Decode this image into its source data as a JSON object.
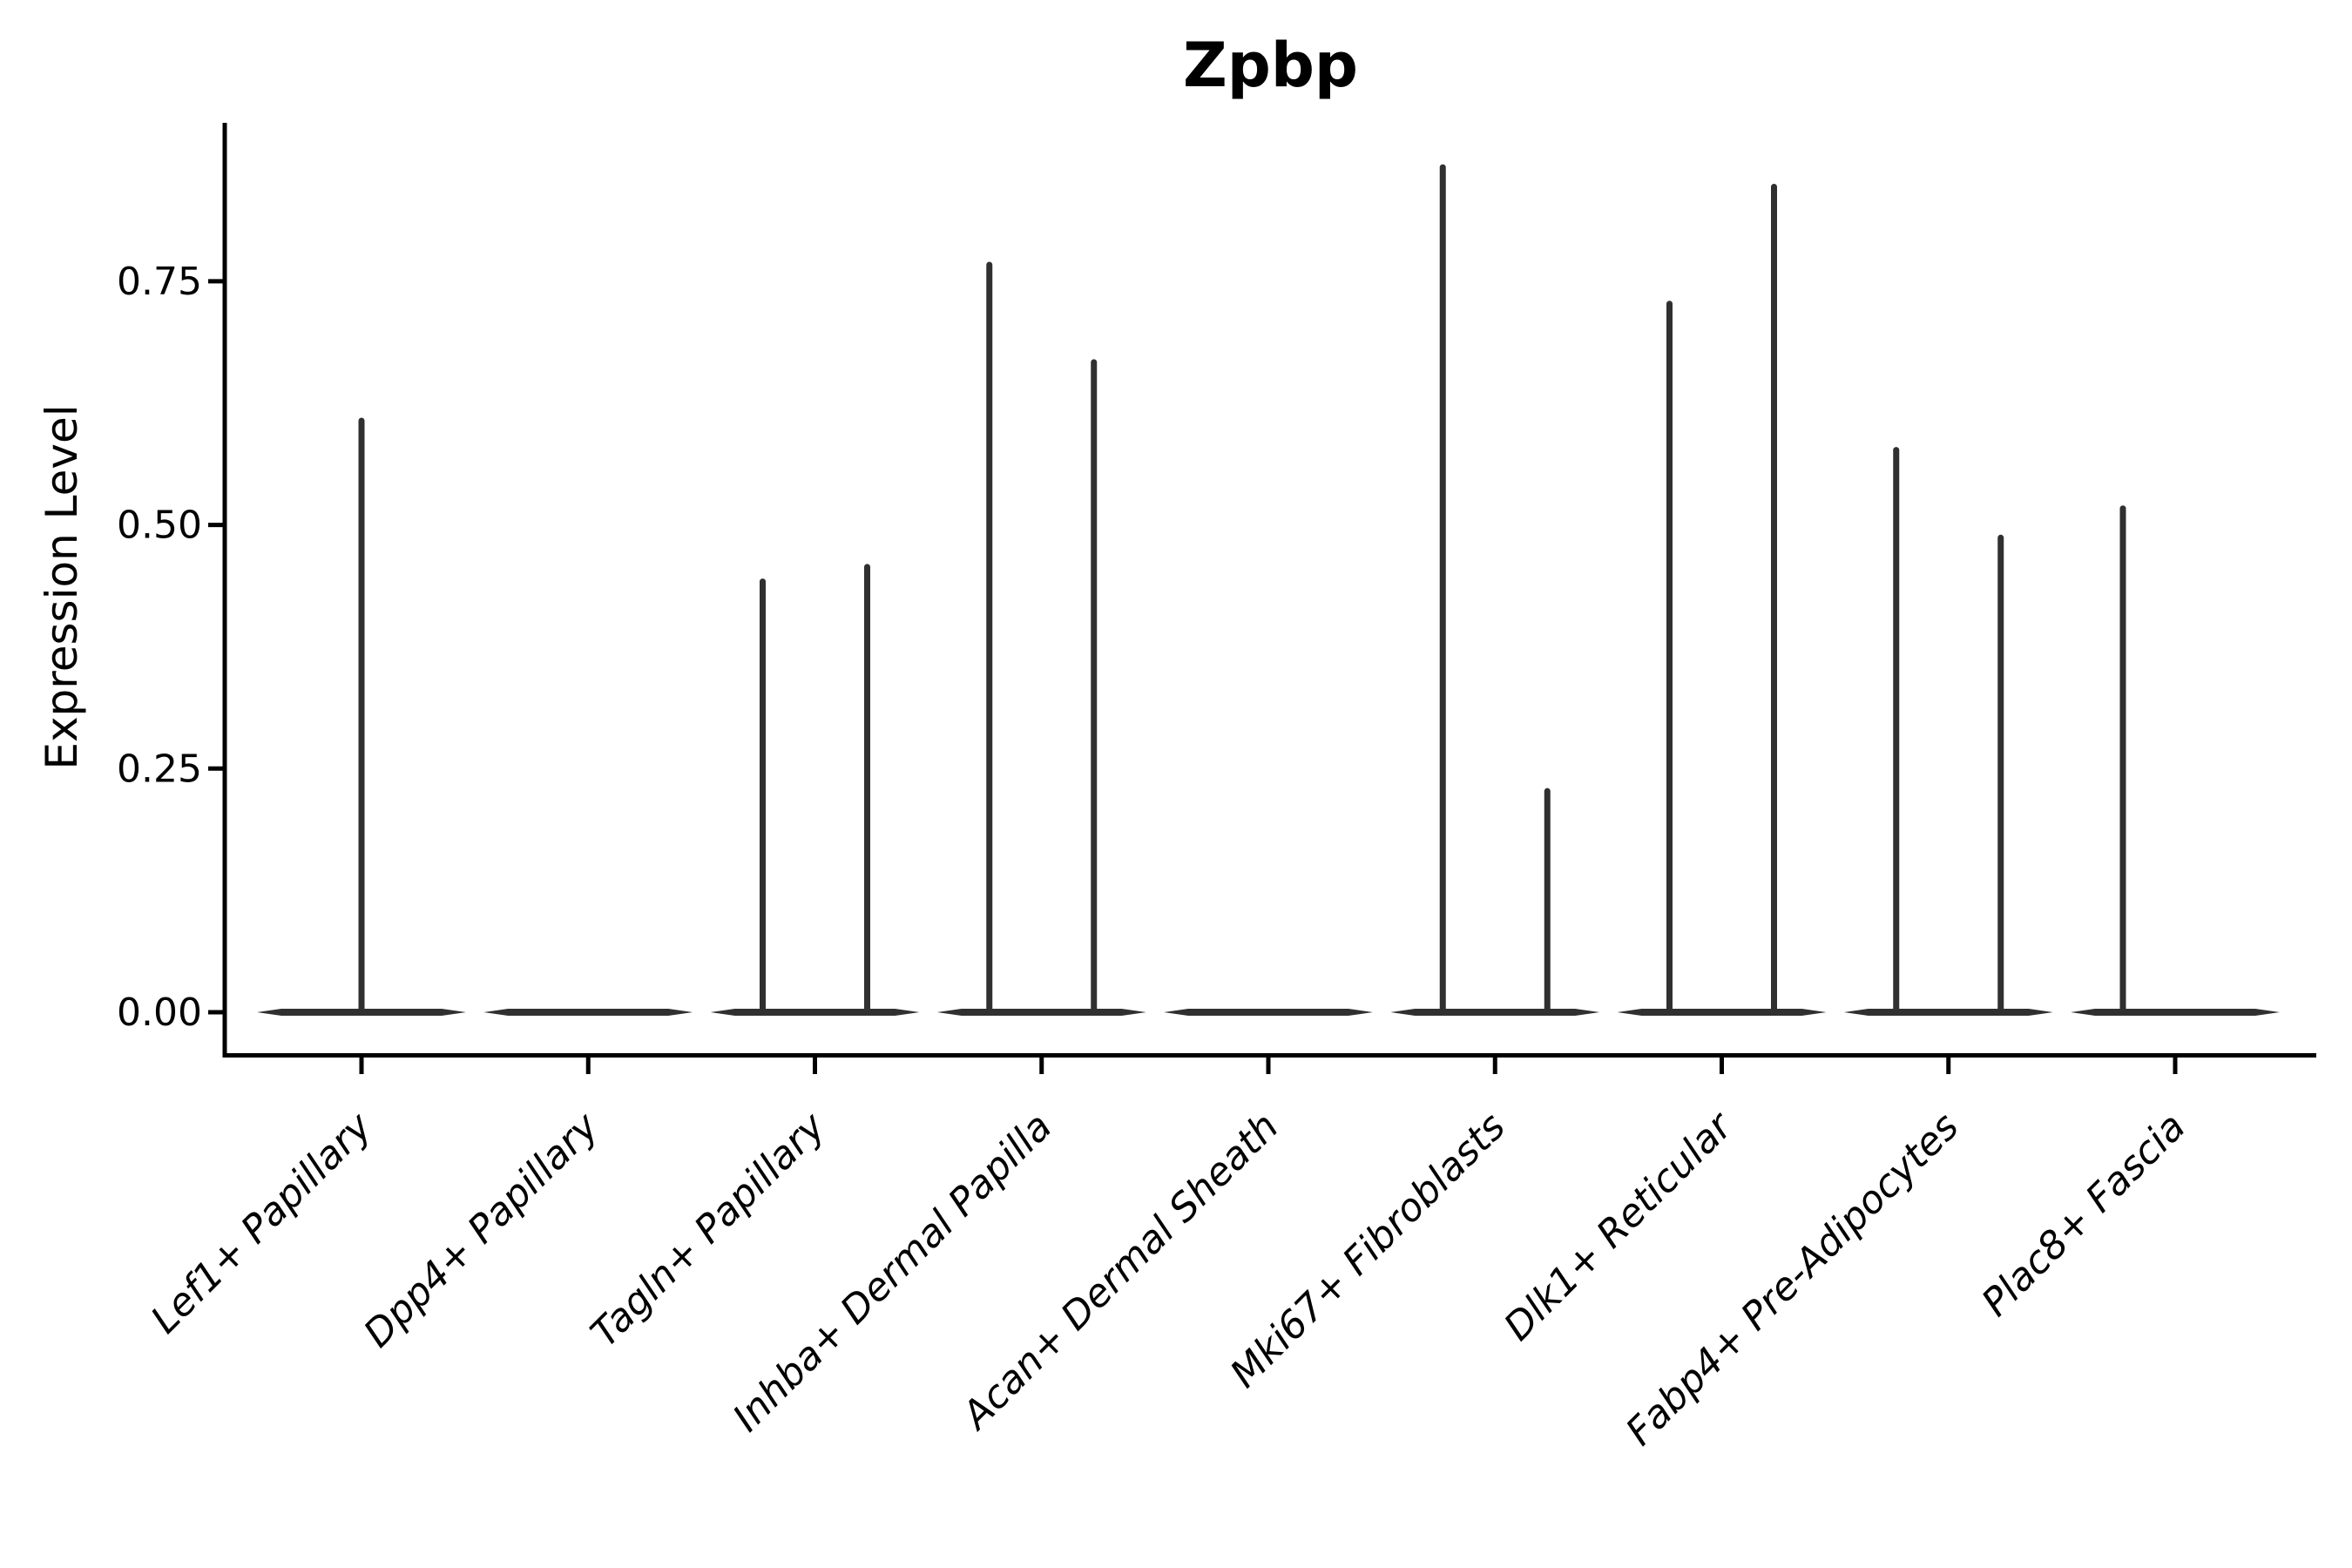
{
  "chart_data": {
    "type": "violin",
    "title": "Zpbp",
    "ylabel": "Expression Level",
    "xlabel": "",
    "ylim": [
      0,
      0.91
    ],
    "yticks": [
      "0.00",
      "0.25",
      "0.50",
      "0.75"
    ],
    "grid": false,
    "legend": null,
    "categories": [
      "Lef1+ Papillary",
      "Dpp4+ Papillary",
      "Tagln+ Papillary",
      "Inhba+ Dermal Papilla",
      "Acan+ Dermal Sheath",
      "Mki67+ Fibroblasts",
      "Dlk1+ Reticular",
      "Fabp4+ Pre-Adipocytes",
      "Plac8+ Fascia"
    ],
    "violins": [
      {
        "category": "Lef1+ Papillary",
        "base_at": 0,
        "spikes": [
          {
            "pos": "center",
            "max": 0.61
          }
        ]
      },
      {
        "category": "Dpp4+ Papillary",
        "base_at": 0,
        "spikes": []
      },
      {
        "category": "Tagln+ Papillary",
        "base_at": 0,
        "spikes": [
          {
            "pos": "left",
            "max": 0.445
          },
          {
            "pos": "right",
            "max": 0.46
          }
        ]
      },
      {
        "category": "Inhba+ Dermal Papilla",
        "base_at": 0,
        "spikes": [
          {
            "pos": "left",
            "max": 0.77
          },
          {
            "pos": "right",
            "max": 0.67
          }
        ]
      },
      {
        "category": "Acan+ Dermal Sheath",
        "base_at": 0,
        "spikes": []
      },
      {
        "category": "Mki67+ Fibroblasts",
        "base_at": 0,
        "spikes": [
          {
            "pos": "left",
            "max": 0.87
          },
          {
            "pos": "right",
            "max": 0.23
          }
        ]
      },
      {
        "category": "Dlk1+ Reticular",
        "base_at": 0,
        "spikes": [
          {
            "pos": "left",
            "max": 0.73
          },
          {
            "pos": "right",
            "max": 0.85
          }
        ]
      },
      {
        "category": "Fabp4+ Pre-Adipocytes",
        "base_at": 0,
        "spikes": [
          {
            "pos": "left",
            "max": 0.58
          },
          {
            "pos": "right",
            "max": 0.49
          }
        ]
      },
      {
        "category": "Plac8+ Fascia",
        "base_at": 0,
        "spikes": [
          {
            "pos": "left",
            "max": 0.52
          }
        ]
      }
    ],
    "colors": {
      "violin": "#303030",
      "axis": "#000000",
      "text": "#000000",
      "background": "#ffffff"
    }
  }
}
